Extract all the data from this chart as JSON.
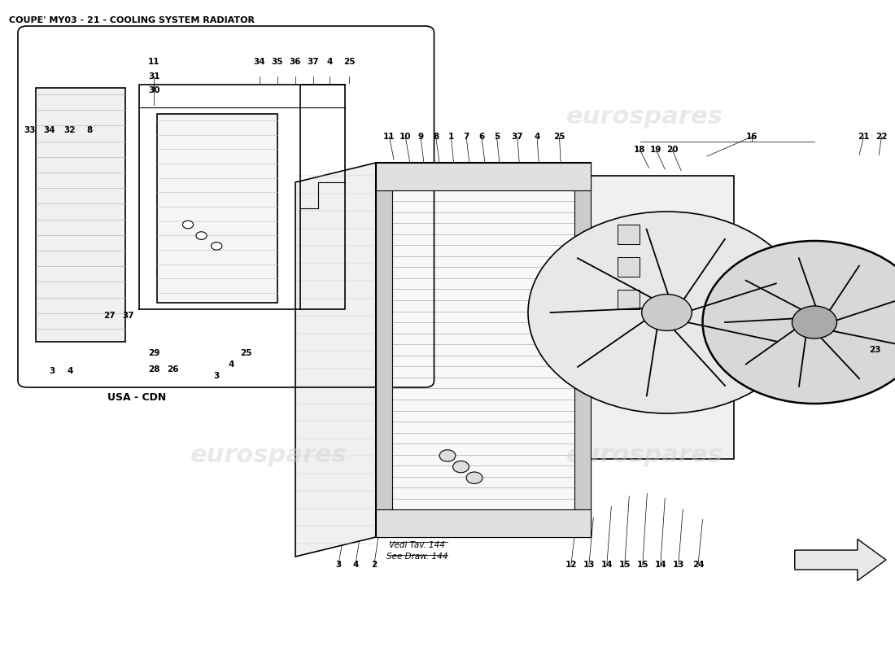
{
  "title": "COUPE' MY03 - 21 - COOLING SYSTEM RADIATOR",
  "title_fontsize": 8,
  "title_fontweight": "bold",
  "bg_color": "#ffffff",
  "line_color": "#000000",
  "watermark_color": "#d0d0d0",
  "watermark_text": "eurospares",
  "usa_cdn_label": "USA - CDN",
  "vedi_line1": "Vedi Tav. 144",
  "vedi_line2": "See Draw. 144",
  "part_label_fontsize": 7.5
}
